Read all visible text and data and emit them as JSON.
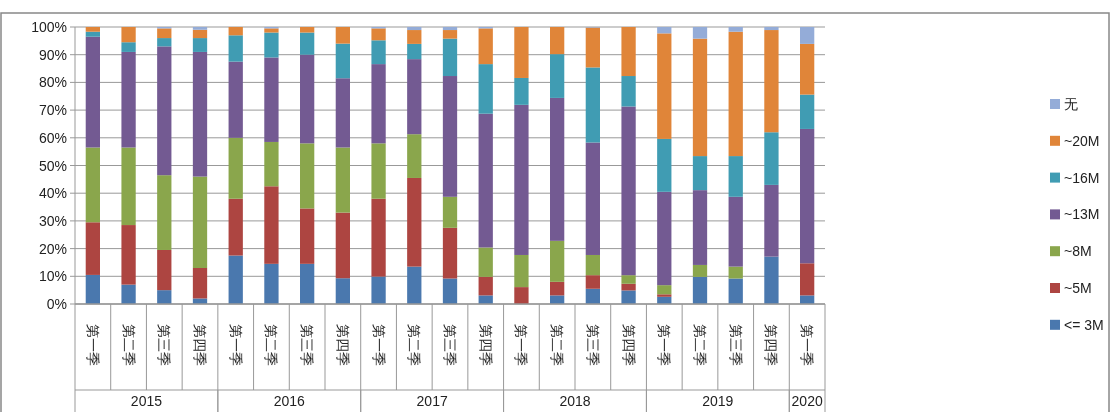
{
  "chart_data": {
    "type": "bar",
    "stacked": true,
    "categories": [
      "第一季",
      "第二季",
      "第三季",
      "第四季",
      "第一季",
      "第二季",
      "第三季",
      "第四季",
      "第一季",
      "第二季",
      "第三季",
      "第四季",
      "第一季",
      "第二季",
      "第三季",
      "第四季",
      "第一季",
      "第二季",
      "第三季",
      "第四季",
      "第一季"
    ],
    "series": [
      {
        "name": "<= 3M",
        "color": "#4a78ae",
        "values": [
          10.5,
          7,
          5,
          2,
          17.5,
          14.5,
          14.5,
          9.3,
          9.9,
          13.5,
          9.2,
          3.1,
          null,
          3.1,
          5.5,
          4.9,
          2.6,
          9.8,
          9.2,
          17.1,
          3.1
        ]
      },
      {
        "name": "~5M",
        "color": "#ad4541",
        "values": [
          19,
          21.5,
          14.5,
          11,
          20.5,
          28,
          20,
          23.7,
          28.1,
          32,
          18.3,
          6.7,
          6.1,
          4.9,
          4.9,
          2.4,
          0.9,
          0,
          0,
          0,
          11.6
        ]
      },
      {
        "name": "~8M",
        "color": "#8aa64c",
        "values": [
          27,
          28,
          27,
          33,
          22,
          16,
          23.5,
          23.5,
          20,
          15.8,
          11.2,
          10.6,
          11.6,
          14.8,
          7.3,
          3.1,
          3.3,
          4.3,
          4.3,
          0,
          0
        ]
      },
      {
        "name": "~13M",
        "color": "#735a92",
        "values": [
          40,
          34.5,
          46.5,
          45,
          27.5,
          30.5,
          32,
          25,
          28.6,
          27.1,
          43.6,
          48.3,
          54.2,
          51.6,
          40.6,
          60.9,
          33.7,
          27,
          25.2,
          25.9,
          48.5
        ]
      },
      {
        "name": "~16M",
        "color": "#409cb3",
        "values": [
          1.8,
          3.5,
          3,
          5,
          9.5,
          9,
          8,
          12.5,
          8.6,
          5.5,
          13.5,
          17.9,
          9.7,
          15.8,
          27.1,
          11,
          19.1,
          12.3,
          14.7,
          19,
          12.4
        ]
      },
      {
        "name": "~20M",
        "color": "#e08539",
        "values": [
          1.7,
          5.5,
          3.5,
          3,
          3,
          1.5,
          2,
          6,
          4.3,
          5,
          3.1,
          12.9,
          18.4,
          9.8,
          14.4,
          17.7,
          38.1,
          42.4,
          44.9,
          36.9,
          18.3
        ]
      },
      {
        "name": "无",
        "color": "#94acd8",
        "values": [
          0,
          0,
          0.5,
          1,
          0,
          0.5,
          0,
          0,
          0.5,
          1.1,
          1.1,
          0.5,
          0,
          0,
          0.2,
          0,
          2.3,
          4.2,
          1.7,
          1.1,
          6.1
        ]
      }
    ],
    "ylim": [
      0,
      100
    ],
    "yticks": [
      {
        "value": 0,
        "label": "0%"
      },
      {
        "value": 10,
        "label": "10%"
      },
      {
        "value": 20,
        "label": "20%"
      },
      {
        "value": 30,
        "label": "30%"
      },
      {
        "value": 40,
        "label": "40%"
      },
      {
        "value": 50,
        "label": "50%"
      },
      {
        "value": 60,
        "label": "60%"
      },
      {
        "value": 70,
        "label": "70%"
      },
      {
        "value": 80,
        "label": "80%"
      },
      {
        "value": 90,
        "label": "90%"
      },
      {
        "value": 100,
        "label": "100%"
      }
    ],
    "grid": "y",
    "legend": "right",
    "annotations": [
      "2015",
      "2016",
      "2017",
      "2018",
      "2019",
      "2020"
    ]
  }
}
